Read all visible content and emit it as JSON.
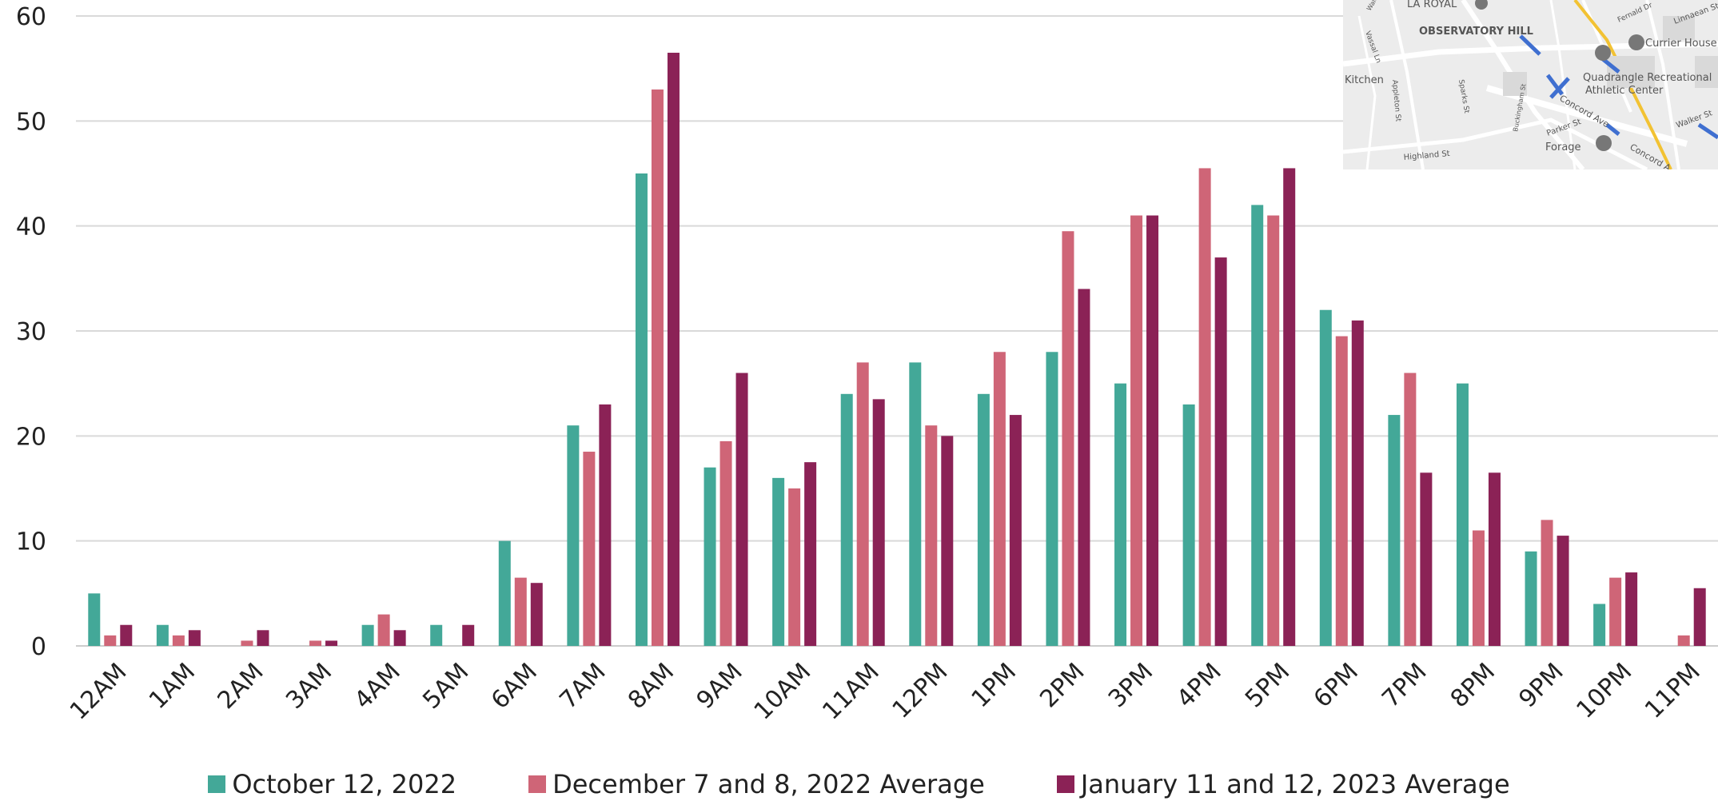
{
  "chart_data": {
    "type": "bar",
    "categories": [
      "12AM",
      "1AM",
      "2AM",
      "3AM",
      "4AM",
      "5AM",
      "6AM",
      "7AM",
      "8AM",
      "9AM",
      "10AM",
      "11AM",
      "12PM",
      "1PM",
      "2PM",
      "3PM",
      "4PM",
      "5PM",
      "6PM",
      "7PM",
      "8PM",
      "9PM",
      "10PM",
      "11PM"
    ],
    "series": [
      {
        "name": "October 12, 2022",
        "color": "#43a898",
        "values": [
          5,
          2,
          0,
          0,
          2,
          2,
          10,
          21,
          45,
          17,
          16,
          24,
          27,
          24,
          28,
          25,
          23,
          42,
          32,
          22,
          25,
          9,
          4,
          0
        ]
      },
      {
        "name": "December 7 and 8, 2022 Average",
        "color": "#cf6577",
        "values": [
          1,
          1,
          0.5,
          0.5,
          3,
          0,
          6.5,
          18.5,
          53,
          19.5,
          15,
          27,
          21,
          28,
          39.5,
          41,
          45.5,
          41,
          29.5,
          26,
          11,
          12,
          6.5,
          1
        ]
      },
      {
        "name": "January 11 and 12, 2023 Average",
        "color": "#8b2256",
        "values": [
          2,
          1.5,
          1.5,
          0.5,
          1.5,
          2,
          6,
          23,
          56.5,
          26,
          17.5,
          23.5,
          20,
          22,
          34,
          41,
          37,
          45.5,
          31,
          16.5,
          16.5,
          10.5,
          7,
          5.5
        ]
      }
    ],
    "yticks": [
      0,
      10,
      20,
      30,
      40,
      50,
      60
    ],
    "ylim": [
      0,
      60
    ],
    "grid": true,
    "legend_position": "bottom"
  },
  "map_inset": {
    "labels": [
      "LA ROYAL",
      "OBSERVATORY HILL",
      "Currier House",
      "Quadrangle Recreational",
      "Athletic Center",
      "Kitchen",
      "Concord Ave",
      "Parker St",
      "Forage",
      "Highland St",
      "Concord A",
      "Walker St",
      "Linnaean St",
      "Fernald Dr",
      "Vassal Ln",
      "Appleton St",
      "Sparks St",
      "Buckingham St",
      "Walden"
    ]
  }
}
